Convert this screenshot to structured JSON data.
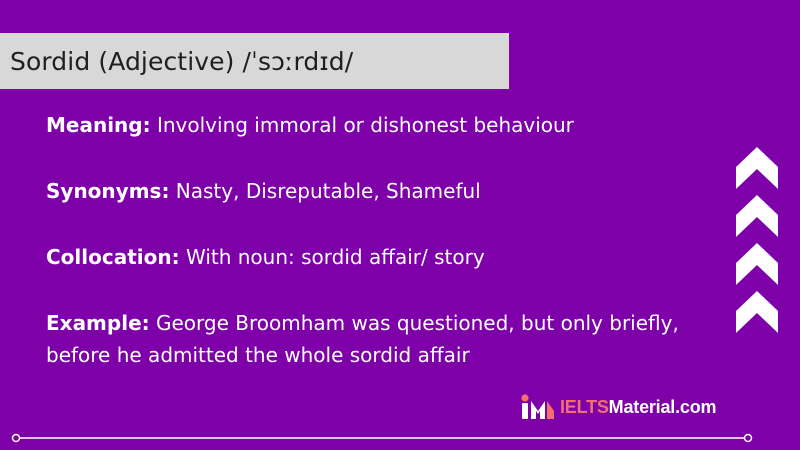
{
  "banner": {
    "title": "Sordid (Adjective) /ˈsɔːrdɪd/"
  },
  "entries": {
    "meaning": {
      "label": "Meaning:",
      "text": "Involving immoral or dishonest behaviour"
    },
    "synonyms": {
      "label": "Synonyms:",
      "text": "Nasty, Disreputable, Shameful"
    },
    "collocation": {
      "label": "Collocation:",
      "text": "With noun: sordid affair/ story"
    },
    "example": {
      "label": "Example:",
      "text": "George Broomham was questioned, but only briefly, before he admitted the whole sordid affair"
    }
  },
  "brand": {
    "name_accent": "IELTS",
    "name_rest": "Material.com"
  },
  "colors": {
    "background": "#7e00a8",
    "banner": "#d8d8d8",
    "text": "#ffffff",
    "brand_accent": "#f36f6f"
  },
  "icons": {
    "decor": "double-chevron-up-icon",
    "logo": "ieltsmaterial-logo-icon"
  }
}
